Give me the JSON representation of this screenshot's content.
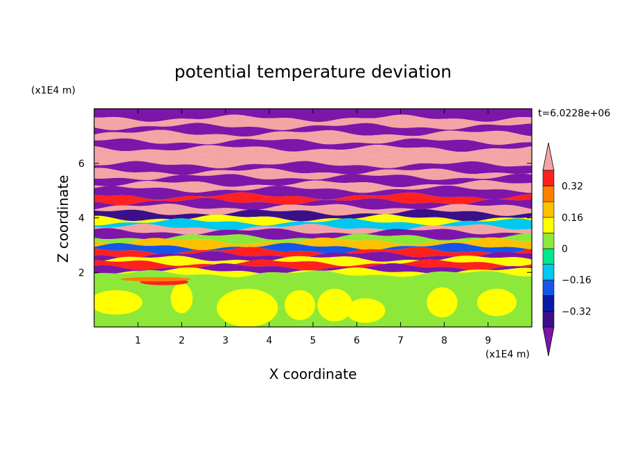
{
  "chart_data": {
    "type": "heatmap",
    "title": "potential temperature deviation",
    "xlabel": "X coordinate",
    "ylabel": "Z coordinate",
    "x_unit": "(x1E4 m)",
    "y_unit": "(x1E4 m)",
    "time_label": "t=6.0228e+06",
    "xlim": [
      0,
      10
    ],
    "ylim": [
      0,
      8
    ],
    "x_ticks": [
      1,
      2,
      3,
      4,
      5,
      6,
      7,
      8,
      9
    ],
    "y_ticks": [
      2,
      4,
      6
    ],
    "x_tick_labels": [
      "1",
      "2",
      "3",
      "4",
      "5",
      "6",
      "7",
      "8",
      "9"
    ],
    "y_tick_labels": [
      "2",
      "4",
      "6"
    ],
    "levels": [
      -0.48,
      -0.4,
      -0.32,
      -0.24,
      -0.16,
      -0.08,
      0,
      0.08,
      0.16,
      0.24,
      0.32,
      0.4,
      0.48
    ],
    "colorbar": {
      "under_color": "#7b16a9",
      "over_color": "#f4a4a4",
      "colors": [
        "#3b0f8a",
        "#0a1aa8",
        "#1556e8",
        "#00c8ee",
        "#00e890",
        "#8ee83a",
        "#ffff00",
        "#ffc000",
        "#ff8000",
        "#ff2020"
      ],
      "tick_values": [
        -0.32,
        -0.16,
        0,
        0.16,
        0.32
      ],
      "tick_labels": [
        "−0.32",
        "−0.16",
        "0",
        "0.16",
        "0.32"
      ]
    },
    "bands": [
      {
        "z0": 7.65,
        "z1": 8.0,
        "value": -0.5
      },
      {
        "z0": 7.35,
        "z1": 7.65,
        "value": 0.5
      },
      {
        "z0": 7.1,
        "z1": 7.35,
        "value": -0.5
      },
      {
        "z0": 6.8,
        "z1": 7.1,
        "value": 0.5
      },
      {
        "z0": 6.55,
        "z1": 6.8,
        "value": -0.5
      },
      {
        "z0": 6.3,
        "z1": 6.55,
        "value": 0.5
      },
      {
        "z0": 5.95,
        "z1": 6.3,
        "value": 0.5
      },
      {
        "z0": 5.7,
        "z1": 5.95,
        "value": -0.5
      },
      {
        "z0": 5.5,
        "z1": 5.7,
        "value": 0.5
      },
      {
        "z0": 5.25,
        "z1": 5.5,
        "value": -0.5
      },
      {
        "z0": 5.05,
        "z1": 5.25,
        "value": 0.5
      },
      {
        "z0": 4.8,
        "z1": 5.05,
        "value": -0.5
      },
      {
        "z0": 4.6,
        "z1": 4.8,
        "value": 0.36
      },
      {
        "z0": 4.4,
        "z1": 4.6,
        "value": -0.5
      },
      {
        "z0": 4.2,
        "z1": 4.4,
        "value": 0.5
      },
      {
        "z0": 4.0,
        "z1": 4.2,
        "value": -0.36
      },
      {
        "z0": 3.85,
        "z1": 4.0,
        "value": 0.1
      },
      {
        "z0": 3.65,
        "z1": 3.85,
        "value": -0.12
      },
      {
        "z0": 3.5,
        "z1": 3.65,
        "value": 0.5
      },
      {
        "z0": 3.3,
        "z1": 3.5,
        "value": -0.5
      },
      {
        "z0": 3.15,
        "z1": 3.3,
        "value": 0.05
      },
      {
        "z0": 2.95,
        "z1": 3.15,
        "value": 0.2
      },
      {
        "z0": 2.8,
        "z1": 2.95,
        "value": -0.2
      },
      {
        "z0": 2.65,
        "z1": 2.8,
        "value": 0.36
      },
      {
        "z0": 2.5,
        "z1": 2.65,
        "value": -0.5
      },
      {
        "z0": 2.35,
        "z1": 2.5,
        "value": 0.1
      },
      {
        "z0": 2.2,
        "z1": 2.35,
        "value": 0.36
      },
      {
        "z0": 2.05,
        "z1": 2.2,
        "value": -0.5
      },
      {
        "z0": 1.95,
        "z1": 2.05,
        "value": 0.08
      },
      {
        "z0": 0.0,
        "z1": 1.95,
        "value": 0.02
      }
    ],
    "blobs": [
      {
        "x": 0.5,
        "z": 0.9,
        "rx": 0.6,
        "rz": 0.45,
        "value": 0.1
      },
      {
        "x": 2.0,
        "z": 1.05,
        "rx": 0.25,
        "rz": 0.55,
        "value": 0.1
      },
      {
        "x": 3.5,
        "z": 0.7,
        "rx": 0.7,
        "rz": 0.7,
        "value": 0.1
      },
      {
        "x": 4.7,
        "z": 0.8,
        "rx": 0.35,
        "rz": 0.55,
        "value": 0.1
      },
      {
        "x": 5.5,
        "z": 0.8,
        "rx": 0.4,
        "rz": 0.6,
        "value": 0.1
      },
      {
        "x": 6.2,
        "z": 0.6,
        "rx": 0.45,
        "rz": 0.45,
        "value": 0.1
      },
      {
        "x": 7.95,
        "z": 0.9,
        "rx": 0.35,
        "rz": 0.55,
        "value": 0.1
      },
      {
        "x": 9.2,
        "z": 0.9,
        "rx": 0.45,
        "rz": 0.5,
        "value": 0.1
      },
      {
        "x": 1.6,
        "z": 1.65,
        "rx": 0.55,
        "rz": 0.12,
        "value": 0.36
      },
      {
        "x": 1.4,
        "z": 1.75,
        "rx": 0.8,
        "rz": 0.08,
        "value": 0.3
      }
    ]
  }
}
